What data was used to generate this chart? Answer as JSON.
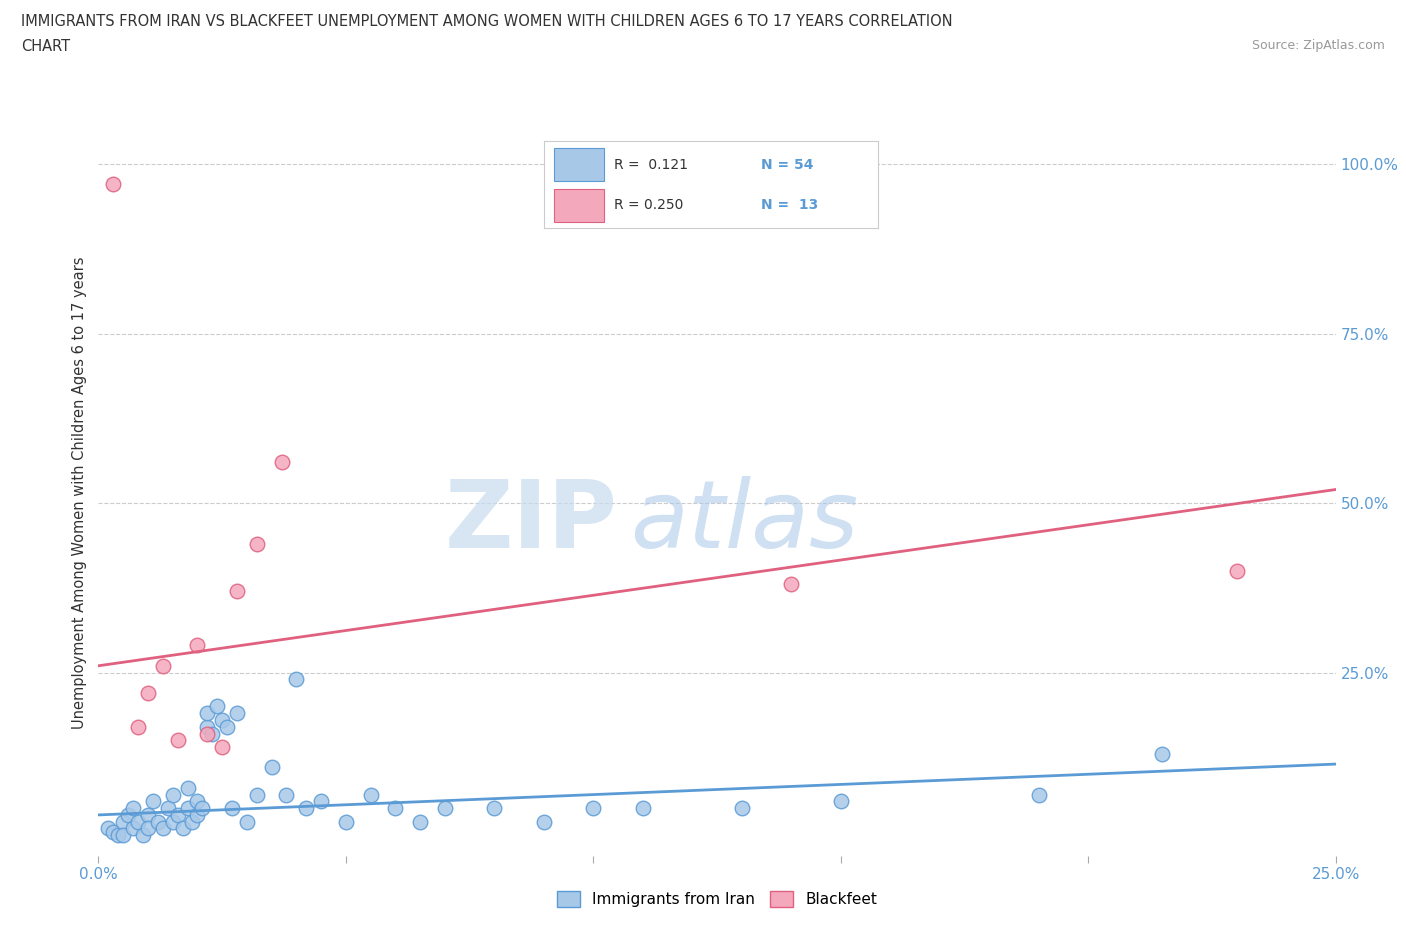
{
  "title_line1": "IMMIGRANTS FROM IRAN VS BLACKFEET UNEMPLOYMENT AMONG WOMEN WITH CHILDREN AGES 6 TO 17 YEARS CORRELATION",
  "title_line2": "CHART",
  "source": "Source: ZipAtlas.com",
  "ylabel": "Unemployment Among Women with Children Ages 6 to 17 years",
  "xlim": [
    0.0,
    0.25
  ],
  "ylim": [
    -0.02,
    1.05
  ],
  "x_ticks": [
    0.0,
    0.05,
    0.1,
    0.15,
    0.2,
    0.25
  ],
  "x_tick_labels": [
    "0.0%",
    "",
    "",
    "",
    "",
    "25.0%"
  ],
  "y_ticks_right": [
    0.25,
    0.5,
    0.75,
    1.0
  ],
  "y_tick_labels_right": [
    "25.0%",
    "50.0%",
    "75.0%",
    "100.0%"
  ],
  "legend_label1": "Immigrants from Iran",
  "legend_label2": "Blackfeet",
  "R1": 0.121,
  "N1": 54,
  "R2": 0.25,
  "N2": 13,
  "color_blue": "#A8C8E8",
  "color_pink": "#F4A8BC",
  "color_blue_dark": "#5B9BD5",
  "color_pink_dark": "#E06080",
  "watermark_ZIP": "ZIP",
  "watermark_atlas": "atlas",
  "blue_scatter_x": [
    0.002,
    0.003,
    0.004,
    0.005,
    0.005,
    0.006,
    0.007,
    0.007,
    0.008,
    0.009,
    0.01,
    0.01,
    0.011,
    0.012,
    0.013,
    0.014,
    0.015,
    0.015,
    0.016,
    0.017,
    0.018,
    0.018,
    0.019,
    0.02,
    0.02,
    0.021,
    0.022,
    0.022,
    0.023,
    0.024,
    0.025,
    0.026,
    0.027,
    0.028,
    0.03,
    0.032,
    0.035,
    0.038,
    0.04,
    0.042,
    0.045,
    0.05,
    0.055,
    0.06,
    0.065,
    0.07,
    0.08,
    0.09,
    0.1,
    0.11,
    0.13,
    0.15,
    0.19,
    0.215
  ],
  "blue_scatter_y": [
    0.02,
    0.015,
    0.01,
    0.03,
    0.01,
    0.04,
    0.02,
    0.05,
    0.03,
    0.01,
    0.04,
    0.02,
    0.06,
    0.03,
    0.02,
    0.05,
    0.03,
    0.07,
    0.04,
    0.02,
    0.05,
    0.08,
    0.03,
    0.06,
    0.04,
    0.05,
    0.17,
    0.19,
    0.16,
    0.2,
    0.18,
    0.17,
    0.05,
    0.19,
    0.03,
    0.07,
    0.11,
    0.07,
    0.24,
    0.05,
    0.06,
    0.03,
    0.07,
    0.05,
    0.03,
    0.05,
    0.05,
    0.03,
    0.05,
    0.05,
    0.05,
    0.06,
    0.07,
    0.13
  ],
  "pink_scatter_x": [
    0.003,
    0.008,
    0.01,
    0.013,
    0.016,
    0.02,
    0.022,
    0.025,
    0.028,
    0.032,
    0.037,
    0.14,
    0.23
  ],
  "pink_scatter_y": [
    0.97,
    0.17,
    0.22,
    0.26,
    0.15,
    0.29,
    0.16,
    0.14,
    0.37,
    0.44,
    0.56,
    0.38,
    0.4
  ],
  "blue_trend_x": [
    0.0,
    0.25
  ],
  "blue_trend_y": [
    0.04,
    0.115
  ],
  "pink_trend_x": [
    0.0,
    0.25
  ],
  "pink_trend_y": [
    0.26,
    0.52
  ],
  "grid_color": "#CCCCCC",
  "background_color": "#FFFFFF"
}
